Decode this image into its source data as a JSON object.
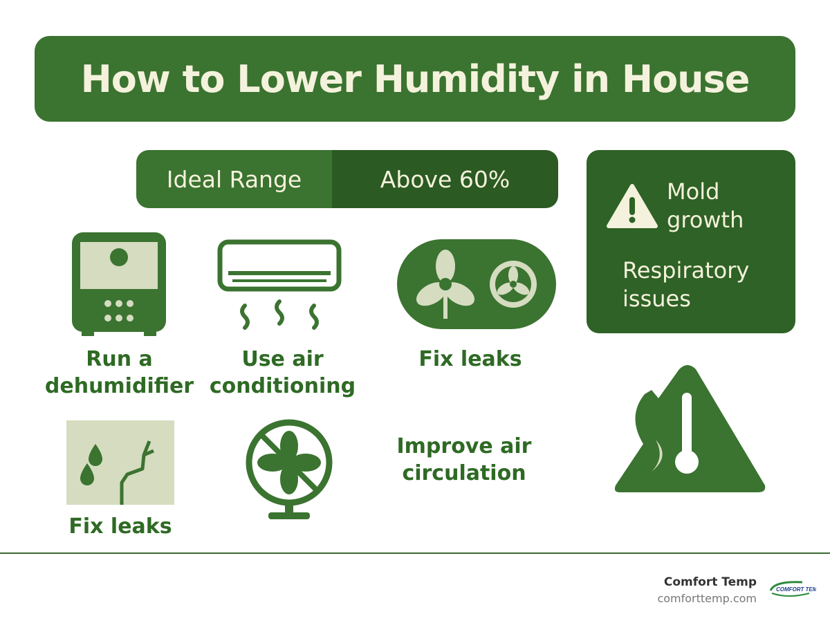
{
  "title": "How to Lower Humidity in House",
  "range_bar": {
    "ideal_label": "Ideal Range",
    "above_label": "Above 60%"
  },
  "risks": {
    "items": [
      "Mold growth",
      "Respiratory issues"
    ],
    "icon": "warning-icon"
  },
  "tips": [
    {
      "label": "Run a dehumidifier",
      "icon": "dehumidifier-icon"
    },
    {
      "label": "Use air conditioning",
      "icon": "air-conditioner-icon"
    },
    {
      "label": "Fix leaks",
      "icon": "fans-icon"
    },
    {
      "label": "Fix leaks",
      "icon": "leak-crack-icon"
    },
    {
      "label": "",
      "icon": "no-fan-icon"
    },
    {
      "label": "Improve air circulation",
      "icon": ""
    }
  ],
  "footer": {
    "brand": "Comfort Temp",
    "url": "comforttemp.com",
    "logo_text": "COMFORT TEMP"
  },
  "colors": {
    "primary": "#3b7330",
    "dark": "#2b5a22",
    "cream": "#f4f2dc",
    "light": "#d5dcc0"
  }
}
